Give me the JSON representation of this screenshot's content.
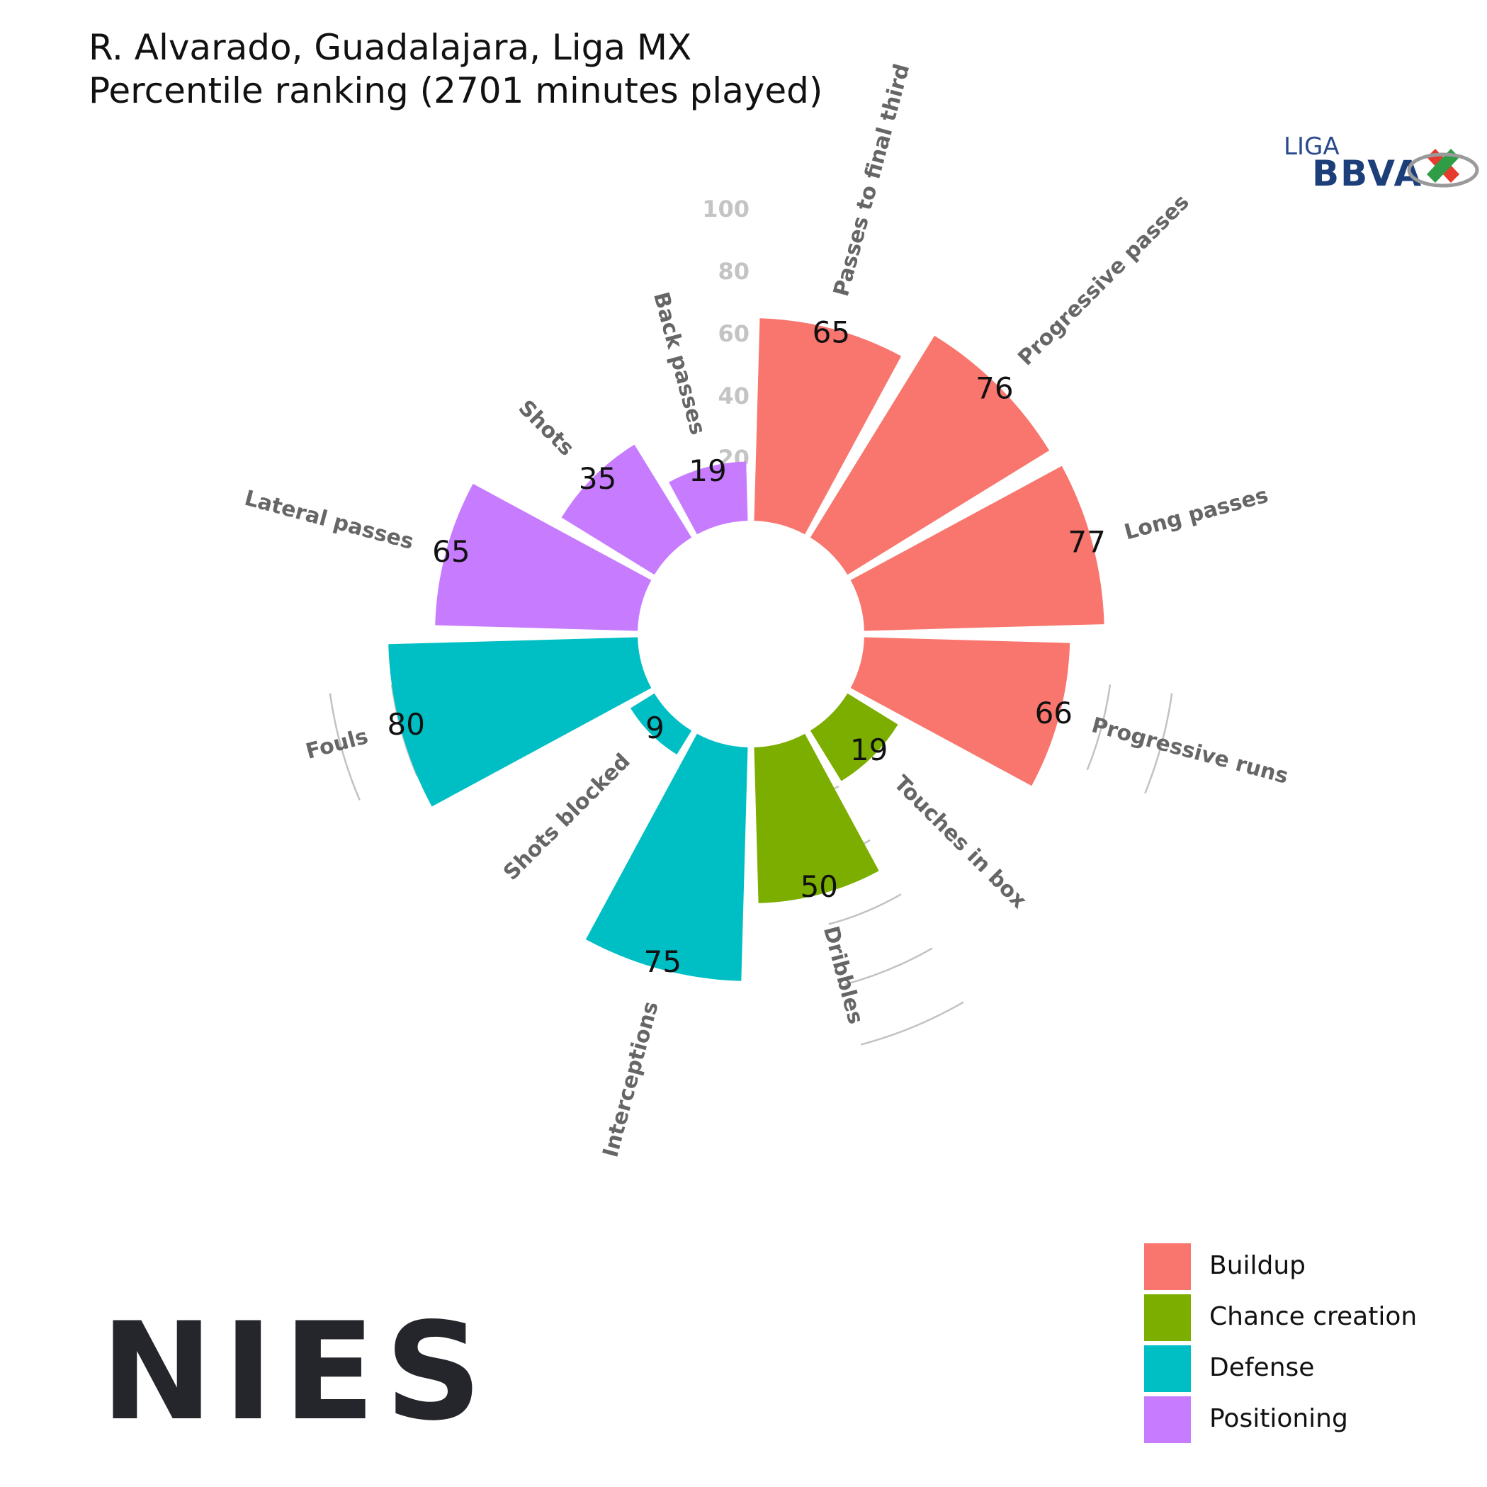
{
  "chart_data": {
    "type": "bar",
    "polar": true,
    "title": "R. Alvarado, Guadalajara, Liga MX",
    "subtitle": "Percentile ranking (2701 minutes played)",
    "rlim": [
      0,
      100
    ],
    "radial_ticks": [
      20,
      40,
      60,
      80,
      100
    ],
    "categories": [
      "Passes to final third",
      "Progressive passes",
      "Long passes",
      "Progressive runs",
      "Touches in box",
      "Dribbles",
      "Interceptions",
      "Shots blocked",
      "Fouls",
      "Lateral passes",
      "Shots",
      "Back passes"
    ],
    "values": [
      65,
      76,
      77,
      66,
      19,
      50,
      75,
      9,
      80,
      65,
      35,
      19
    ],
    "groups": [
      "Buildup",
      "Buildup",
      "Buildup",
      "Buildup",
      "Chance creation",
      "Chance creation",
      "Defense",
      "Defense",
      "Defense",
      "Positioning",
      "Positioning",
      "Positioning"
    ],
    "legend": {
      "position": "bottom-right",
      "entries": [
        {
          "name": "Buildup",
          "color": "#F8766D"
        },
        {
          "name": "Chance creation",
          "color": "#7CAE00"
        },
        {
          "name": "Defense",
          "color": "#00BFC4"
        },
        {
          "name": "Positioning",
          "color": "#C77CFF"
        }
      ]
    }
  },
  "logos": {
    "league_top": "LIGA",
    "league_bottom": "BBVA",
    "brand": "NIES"
  }
}
